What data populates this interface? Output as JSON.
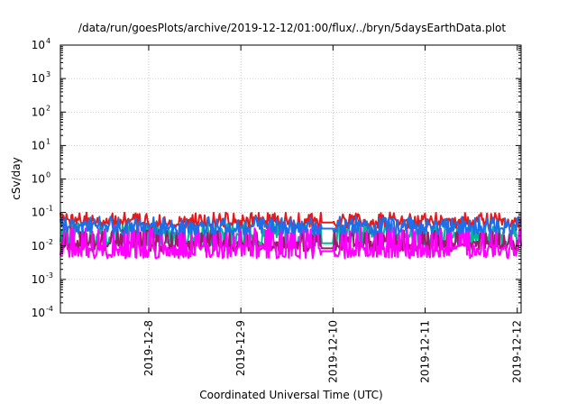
{
  "chart_data": {
    "type": "line",
    "title": "/data/run/goesPlots/archive/2019-12-12/01:00/flux/../bryn/5daysEarthData.plot",
    "xlabel": "Coordinated Universal Time (UTC)",
    "ylabel": "cSv/day",
    "yscale": "log",
    "ylim": [
      0.0001,
      10000
    ],
    "y_ticks": [
      {
        "base": "10",
        "exp": "-4",
        "value": 0.0001
      },
      {
        "base": "10",
        "exp": "-3",
        "value": 0.001
      },
      {
        "base": "10",
        "exp": "-2",
        "value": 0.01
      },
      {
        "base": "10",
        "exp": "-1",
        "value": 0.1
      },
      {
        "base": "10",
        "exp": "0",
        "value": 1
      },
      {
        "base": "10",
        "exp": "1",
        "value": 10
      },
      {
        "base": "10",
        "exp": "2",
        "value": 100
      },
      {
        "base": "10",
        "exp": "3",
        "value": 1000
      },
      {
        "base": "10",
        "exp": "4",
        "value": 10000
      }
    ],
    "xlim": [
      "2019-12-07T01:00",
      "2019-12-12T01:00"
    ],
    "x_ticks": [
      {
        "label": "2019-12-8",
        "value": "2019-12-08T00:00"
      },
      {
        "label": "2019-12-9",
        "value": "2019-12-09T00:00"
      },
      {
        "label": "2019-12-10",
        "value": "2019-12-10T00:00"
      },
      {
        "label": "2019-12-11",
        "value": "2019-12-11T00:00"
      },
      {
        "label": "2019-12-12",
        "value": "2019-12-12T00:00"
      }
    ],
    "data_gap": [
      "2019-12-09T21:00",
      "2019-12-10T00:00"
    ],
    "grid": true,
    "series": [
      {
        "color": "#e41a1c",
        "baseline": 0.055,
        "spike_low": 0.04,
        "spike_high": 0.1,
        "gap_level": 0.05
      },
      {
        "color": "#1c6fe8",
        "baseline": 0.04,
        "spike_low": 0.025,
        "spike_high": 0.075,
        "gap_level": 0.033
      },
      {
        "color": "#00b894",
        "baseline": 0.022,
        "spike_low": 0.012,
        "spike_high": 0.05,
        "gap_level": 0.012
      },
      {
        "color": "#9b1b6a",
        "baseline": 0.012,
        "spike_low": 0.008,
        "spike_high": 0.03,
        "gap_level": 0.0085
      },
      {
        "color": "#ff00ff",
        "baseline": 0.009,
        "spike_low": 0.005,
        "spike_high": 0.04,
        "gap_level": 0.007
      }
    ]
  }
}
